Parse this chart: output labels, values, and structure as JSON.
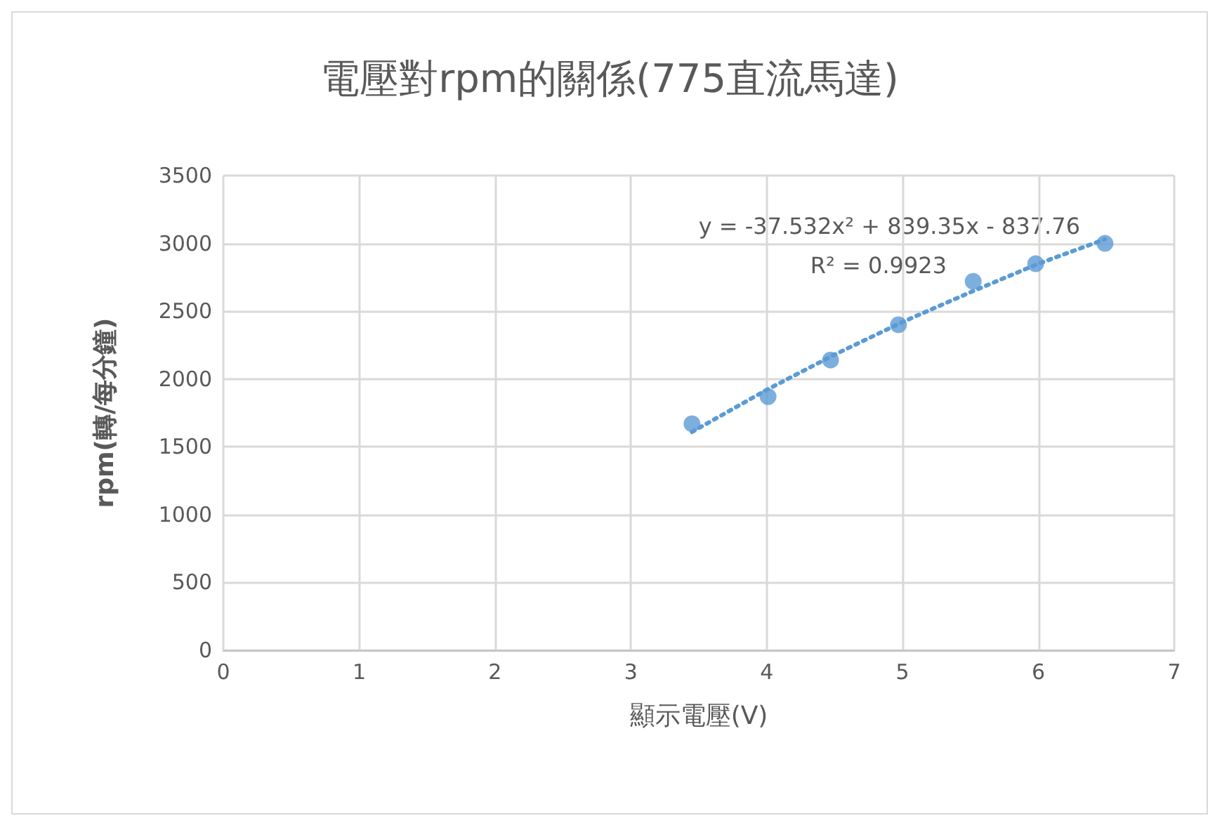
{
  "chart_data": {
    "type": "scatter",
    "title": "電壓對rpm的關係(775直流馬達)",
    "xlabel": "顯示電壓(V)",
    "ylabel": "rpm(轉/每分鐘)",
    "series": [
      {
        "color": "#5b9bd5",
        "x": [
          3.45,
          4.01,
          4.47,
          4.97,
          5.52,
          5.98,
          6.49
        ],
        "values": [
          1670,
          1870,
          2140,
          2400,
          2720,
          2850,
          3000
        ],
        "marker": "circle"
      },
      {
        "type": "line",
        "color": "#5b9bd5",
        "x": [
          3.45,
          4,
          4.5,
          5,
          5.5,
          6,
          6.49
        ],
        "values": [
          1610,
          1920,
          2180,
          2420,
          2640,
          2850,
          3030
        ],
        "marker": "none",
        "line_style": "dotted"
      }
    ],
    "annotations": [
      "y = -37.532x² + 839.35x - 837.76",
      "R² = 0.9923"
    ],
    "xlim": [
      0,
      7
    ],
    "xticks": [
      0,
      1,
      2,
      3,
      4,
      5,
      6,
      7
    ],
    "ylim": [
      0,
      3500
    ],
    "yticks": [
      0,
      500,
      1000,
      1500,
      2000,
      2500,
      3000,
      3500
    ],
    "grid": true
  }
}
